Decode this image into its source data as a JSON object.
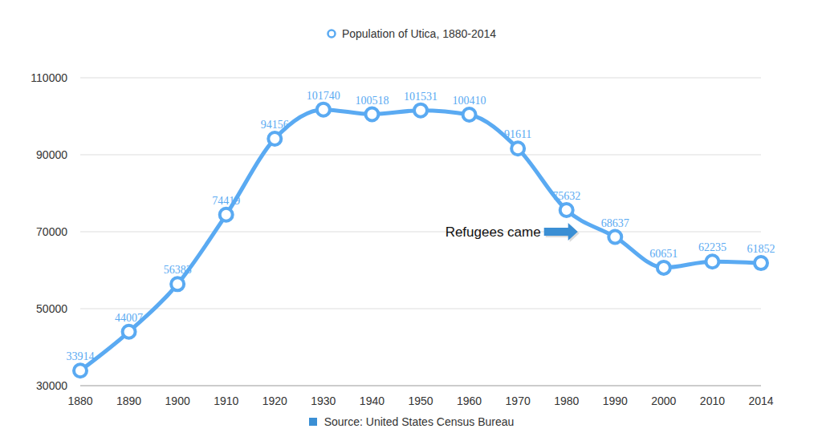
{
  "chart_data": {
    "type": "line",
    "title": "Population of Utica, 1880-2014",
    "categories": [
      "1880",
      "1890",
      "1900",
      "1910",
      "1920",
      "1930",
      "1940",
      "1950",
      "1960",
      "1970",
      "1980",
      "1990",
      "2000",
      "2010",
      "2014"
    ],
    "values": [
      33914,
      44007,
      56383,
      74419,
      94156,
      101740,
      100518,
      101531,
      100410,
      91611,
      75632,
      68637,
      60651,
      62235,
      61852
    ],
    "color": "#5aaaf2",
    "ylim": [
      30000,
      110000
    ],
    "yticks": [
      30000,
      50000,
      70000,
      90000,
      110000
    ],
    "grid": true,
    "data_labels": true,
    "marker": "circle",
    "source": "Source: United States Census Bureau",
    "annotations": [
      {
        "text": "Refugees came",
        "x": "1980"
      }
    ]
  }
}
